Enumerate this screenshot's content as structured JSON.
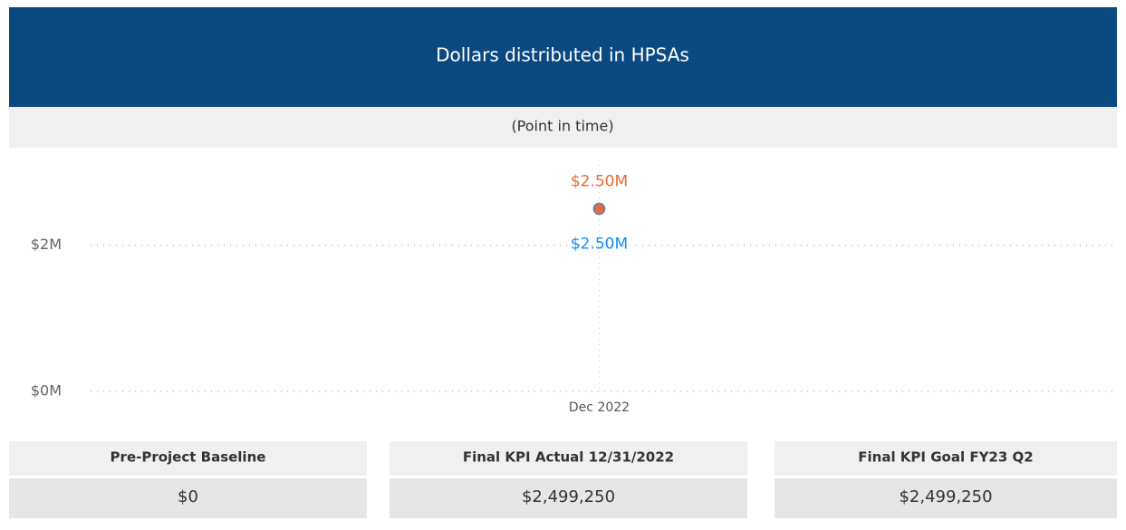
{
  "header": {
    "title": "Dollars distributed in HPSAs",
    "subtitle": "(Point in time)"
  },
  "chart_data": {
    "type": "line",
    "categories": [
      "Dec 2022"
    ],
    "series": [
      {
        "color": "#118dff",
        "values": [
          2499250
        ],
        "value_labels": [
          "$2.50M"
        ]
      },
      {
        "color": "#e66c37",
        "values": [
          2499250
        ],
        "value_labels": [
          "$2.50M"
        ]
      }
    ],
    "ylim": [
      0,
      3100000
    ],
    "yticks": [
      {
        "value": 0,
        "label": "$0M"
      },
      {
        "value": 2000000,
        "label": "$2M"
      }
    ],
    "grid": true
  },
  "cards": [
    {
      "label": "Pre-Project Baseline",
      "value": "$0"
    },
    {
      "label": "Final KPI Actual 12/31/2022",
      "value": "$2,499,250"
    },
    {
      "label": "Final KPI Goal  FY23 Q2",
      "value": "$2,499,250"
    }
  ]
}
